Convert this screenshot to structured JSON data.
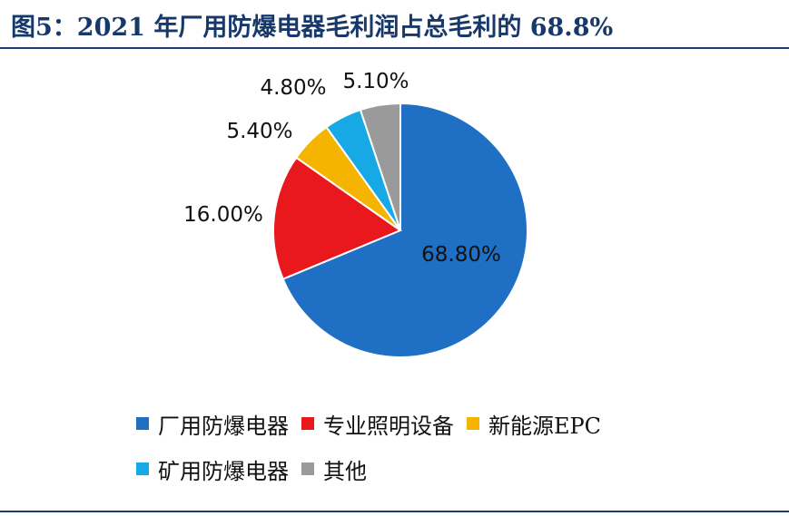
{
  "title": "图5：2021 年厂用防爆电器毛利润占总毛利的 68.8%",
  "chart_data": {
    "type": "pie",
    "slices": [
      {
        "name": "厂用防爆电器",
        "value": 68.8,
        "label": "68.80%",
        "color": "#1f6fc4"
      },
      {
        "name": "专业照明设备",
        "value": 16.0,
        "label": "16.00%",
        "color": "#e8181c"
      },
      {
        "name": "新能源EPC",
        "value": 5.4,
        "label": "5.40%",
        "color": "#f4b400"
      },
      {
        "name": "矿用防爆电器",
        "value": 4.8,
        "label": "4.80%",
        "color": "#17a9e6"
      },
      {
        "name": "其他",
        "value": 5.1,
        "label": "5.10%",
        "color": "#9a9a9a"
      }
    ],
    "legend_position": "bottom"
  }
}
